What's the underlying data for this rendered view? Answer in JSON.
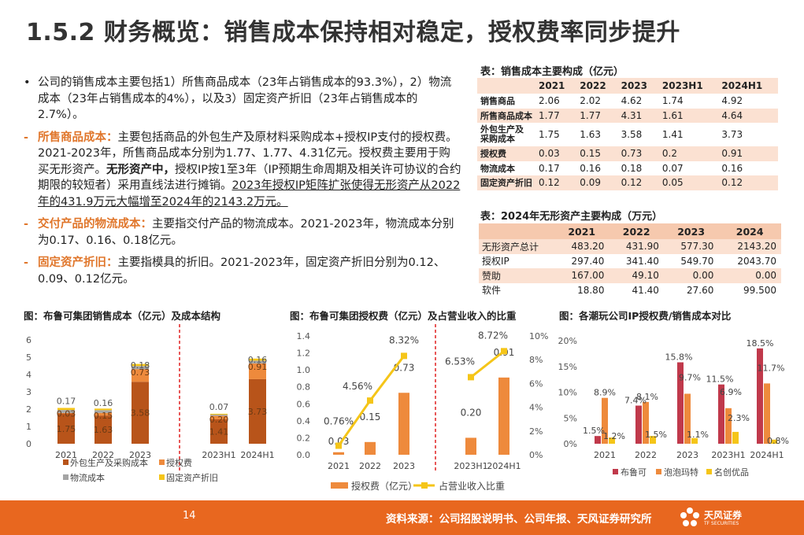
{
  "title": "1.5.2 财务概览：销售成本保持相对稳定，授权费率同步提升",
  "bullets": [
    {
      "parts": [
        {
          "t": "公司的销售成本主要包括1）所售商品成本（23年占销售成本的93.3%），2）物流成本（23年占销售成本的4%），以及3）固定资产折旧（23年占销售成本的2.7%）。",
          "s": "n"
        }
      ]
    },
    {
      "parts": [
        {
          "t": "所售商品成本：",
          "s": "o"
        },
        {
          "t": "主要包括商品的外包生产及原材料采购成本+授权IP支付的授权费。2021-2023年，所售商品成本分别为1.77、1.77、4.31亿元。授权费主要用于购买无形资产。",
          "s": "n"
        },
        {
          "t": "无形资产中，",
          "s": "b"
        },
        {
          "t": "授权IP按1至3年（IP预期生命周期及相关许可协议的合约期限的较短者）采用直线法进行摊销。",
          "s": "n"
        },
        {
          "t": "2023年授权IP矩阵扩张使得无形资产从2022年的431.9万元大幅增至2024年的2143.2万元。",
          "s": "u"
        }
      ]
    },
    {
      "parts": [
        {
          "t": "交付产品的物流成本：",
          "s": "o"
        },
        {
          "t": "主要指交付产品的物流成本。2021-2023年，物流成本分别为0.17、0.16、0.18亿元。",
          "s": "n"
        }
      ]
    },
    {
      "parts": [
        {
          "t": "固定资产折旧：",
          "s": "o"
        },
        {
          "t": "主要指模具的折旧。2021-2023年，固定资产折旧分别为0.12、0.09、0.12亿元。",
          "s": "n"
        }
      ]
    }
  ],
  "table1": {
    "caption": "表：销售成本主要构成（亿元）",
    "headers": [
      "",
      "2021",
      "2022",
      "2023",
      "2023H1",
      "2024H1"
    ],
    "rows": [
      [
        "销售商品",
        "2.06",
        "2.02",
        "4.62",
        "1.74",
        "4.92"
      ],
      [
        "所售商品成本",
        "1.77",
        "1.77",
        "4.31",
        "1.61",
        "4.64"
      ],
      [
        "外包生产及\n采购成本",
        "1.75",
        "1.63",
        "3.58",
        "1.41",
        "3.73"
      ],
      [
        "授权费",
        "0.03",
        "0.15",
        "0.73",
        "0.2",
        "0.91"
      ],
      [
        "物流成本",
        "0.17",
        "0.16",
        "0.18",
        "0.07",
        "0.16"
      ],
      [
        "固定资产折旧",
        "0.12",
        "0.09",
        "0.12",
        "0.05",
        "0.12"
      ]
    ]
  },
  "table2": {
    "caption": "表：2024年无形资产主要构成（万元）",
    "headers": [
      "",
      "2021",
      "2022",
      "2023",
      "2024"
    ],
    "rows": [
      [
        "无形资产总计",
        "483.20",
        "431.90",
        "577.30",
        "2143.20"
      ],
      [
        "授权IP",
        "297.40",
        "341.40",
        "549.70",
        "2043.70"
      ],
      [
        "赞助",
        "167.00",
        "49.10",
        "0.00",
        "0.00"
      ],
      [
        "软件",
        "18.80",
        "41.40",
        "27.60",
        "99.500"
      ]
    ]
  },
  "chart_data": [
    {
      "type": "bar",
      "title": "图：布鲁可集团销售成本（亿元）及成本结构",
      "categories": [
        "2021",
        "2022",
        "2023",
        "2023H1",
        "2024H1"
      ],
      "ylim": [
        0,
        6
      ],
      "yticks": [
        "0",
        "1",
        "2",
        "3",
        "4",
        "5",
        "6"
      ],
      "stacked": true,
      "series": [
        {
          "name": "外包生产及采购成本",
          "values": [
            1.75,
            1.63,
            3.58,
            1.41,
            3.73
          ],
          "color": "#b8541a"
        },
        {
          "name": "授权费",
          "values": [
            0.03,
            0.15,
            0.73,
            0.2,
            0.91
          ],
          "color": "#ee8a3c"
        },
        {
          "name": "物流成本",
          "values": [
            0.17,
            0.16,
            0.18,
            0.07,
            0.16
          ],
          "color": "#a5a5a5"
        },
        {
          "name": "固定资产折旧",
          "values": [
            0.12,
            0.09,
            0.12,
            0.05,
            0.12
          ],
          "color": "#f5c518"
        }
      ],
      "labels": [
        [
          "1.75",
          "0.03",
          "0.17"
        ],
        [
          "1.63",
          "0.15",
          "0.16"
        ],
        [
          "3.58",
          "0.73",
          "0.18"
        ],
        [
          "1.41",
          "0.20",
          "0.07"
        ],
        [
          "3.73",
          "0.91",
          "0.16"
        ]
      ]
    },
    {
      "type": "bar",
      "title": "图：布鲁可集团授权费（亿元）及占营业收入的比重",
      "categories": [
        "2021",
        "2022",
        "2023",
        "2023H1",
        "2024H1"
      ],
      "ylim": [
        0,
        1.4
      ],
      "yticks": [
        "0.0",
        "0.2",
        "0.4",
        "0.6",
        "0.8",
        "1.0",
        "1.2",
        "1.4"
      ],
      "y2lim": [
        0,
        10
      ],
      "y2ticks": [
        "0%",
        "2%",
        "4%",
        "6%",
        "8%",
        "10%"
      ],
      "series": [
        {
          "name": "授权费（亿元）",
          "type": "bar",
          "values": [
            0.03,
            0.15,
            0.73,
            0.2,
            0.91
          ],
          "color": "#ee8a3c"
        },
        {
          "name": "占营业收入比重",
          "type": "line",
          "values": [
            0.76,
            4.56,
            8.32,
            6.53,
            8.72
          ],
          "color": "#f5c518",
          "axis": "right"
        }
      ],
      "bar_labels": [
        "0.03",
        "0.15",
        "0.73",
        "0.20",
        "0.91"
      ],
      "line_labels": [
        "0.76%",
        "4.56%",
        "8.32%",
        "6.53%",
        "8.72%"
      ]
    },
    {
      "type": "bar",
      "title": "图：各潮玩公司IP授权费/销售成本对比",
      "categories": [
        "2021",
        "2022",
        "2023",
        "2023H1",
        "2024H1"
      ],
      "ylim": [
        0,
        20
      ],
      "yticks": [
        "0%",
        "5%",
        "10%",
        "15%",
        "20%"
      ],
      "series": [
        {
          "name": "布鲁可",
          "values": [
            1.5,
            7.4,
            15.8,
            11.5,
            18.5
          ],
          "color": "#c0394b"
        },
        {
          "name": "泡泡玛特",
          "values": [
            8.9,
            8.1,
            9.7,
            6.9,
            11.7
          ],
          "color": "#ee8a3c"
        },
        {
          "name": "名创优品",
          "values": [
            1.2,
            1.5,
            1.1,
            2.3,
            0.8
          ],
          "color": "#f5c518"
        }
      ],
      "labels": [
        [
          "1.5%",
          "8.9%",
          "1.2%"
        ],
        [
          "7.4%",
          "8.1%",
          "1.5%"
        ],
        [
          "15.8%",
          "9.7%",
          "1.1%"
        ],
        [
          "11.5%",
          "6.9%",
          "2.3%"
        ],
        [
          "18.5%",
          "11.7%",
          "0.8%"
        ]
      ]
    }
  ],
  "footer": {
    "page_number": "14",
    "source": "资料来源：公司招股说明书、公司年报、天风证券研究所",
    "logo_text": "天风证券",
    "logo_sub": "TF SECURITIES",
    "accent_color": "#e8671f"
  }
}
